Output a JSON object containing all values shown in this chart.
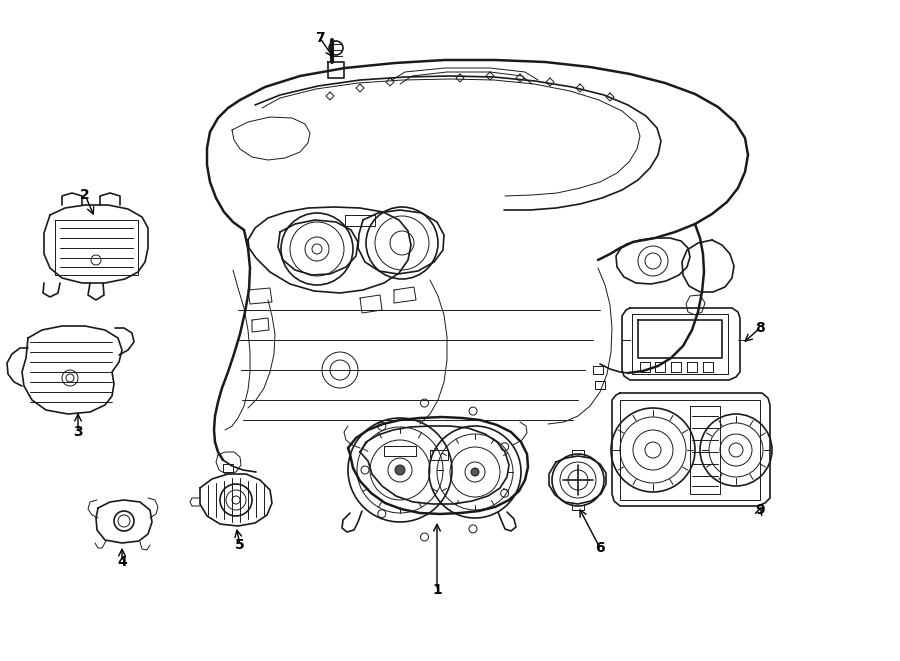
{
  "bg_color": "#ffffff",
  "lc": "#1a1a1a",
  "lw_thick": 1.8,
  "lw_med": 1.2,
  "lw_thin": 0.7,
  "fig_w": 9.0,
  "fig_h": 6.61,
  "dpi": 100
}
